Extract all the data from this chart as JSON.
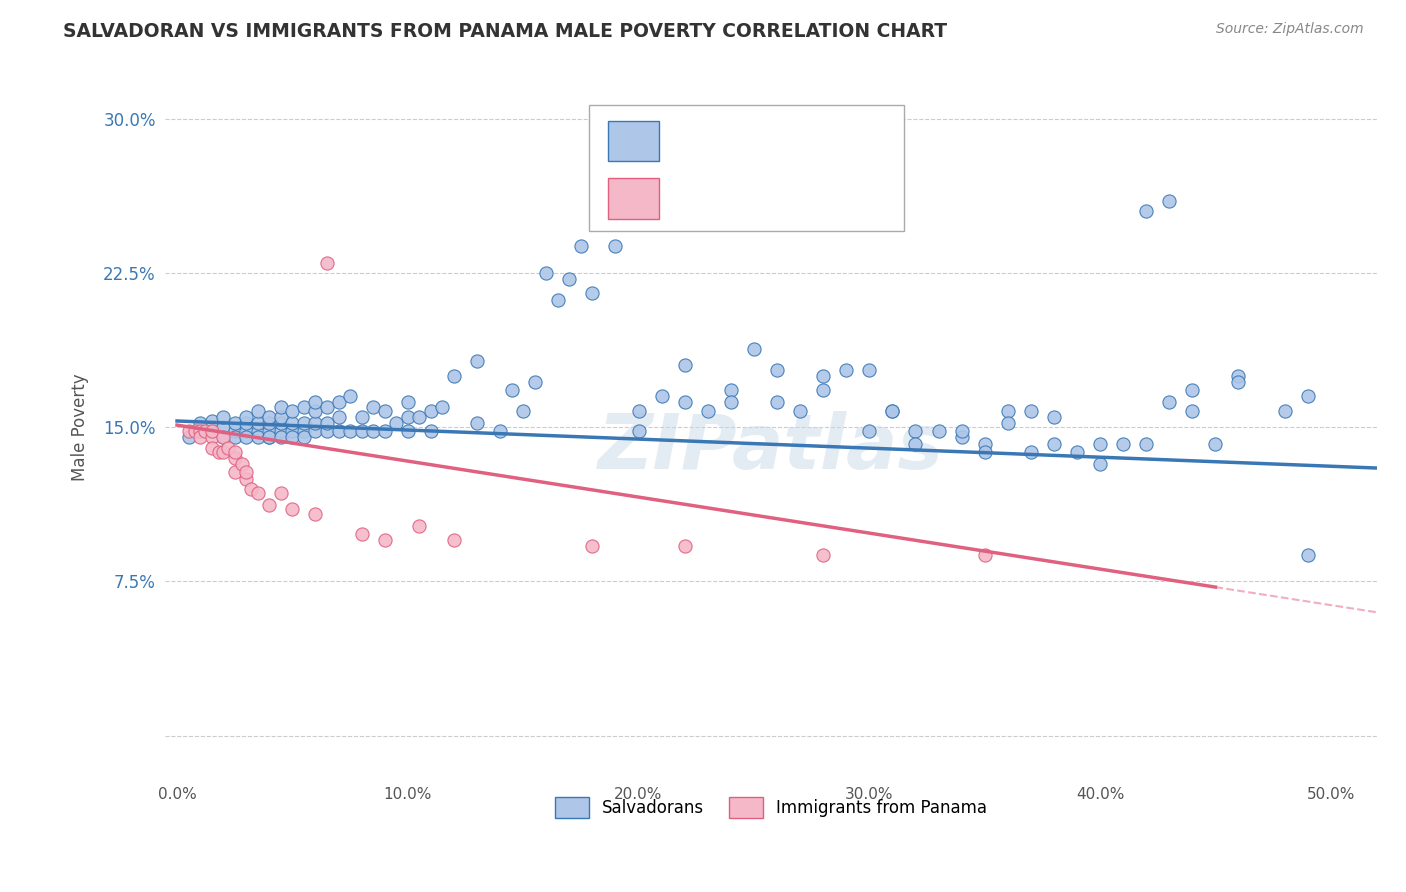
{
  "title": "SALVADORAN VS IMMIGRANTS FROM PANAMA MALE POVERTY CORRELATION CHART",
  "source": "Source: ZipAtlas.com",
  "ylabel": "Male Poverty",
  "x_ticks": [
    0.0,
    0.1,
    0.2,
    0.3,
    0.4,
    0.5
  ],
  "x_tick_labels": [
    "0.0%",
    "10.0%",
    "20.0%",
    "30.0%",
    "40.0%",
    "50.0%"
  ],
  "y_ticks": [
    0.0,
    0.075,
    0.15,
    0.225,
    0.3
  ],
  "y_tick_labels": [
    "",
    "7.5%",
    "15.0%",
    "22.5%",
    "30.0%"
  ],
  "xlim": [
    -0.005,
    0.52
  ],
  "ylim": [
    -0.02,
    0.32
  ],
  "color_blue": "#aec6e8",
  "color_pink": "#f4b8c8",
  "line_blue": "#3a78b5",
  "line_pink": "#e06080",
  "watermark": "ZIPatlas",
  "legend_label1": "Salvadorans",
  "legend_label2": "Immigrants from Panama",
  "blue_x": [
    0.005,
    0.01,
    0.01,
    0.015,
    0.015,
    0.02,
    0.02,
    0.02,
    0.025,
    0.025,
    0.025,
    0.03,
    0.03,
    0.03,
    0.03,
    0.035,
    0.035,
    0.035,
    0.035,
    0.04,
    0.04,
    0.04,
    0.04,
    0.04,
    0.045,
    0.045,
    0.045,
    0.045,
    0.045,
    0.05,
    0.05,
    0.05,
    0.05,
    0.055,
    0.055,
    0.055,
    0.055,
    0.06,
    0.06,
    0.06,
    0.06,
    0.065,
    0.065,
    0.065,
    0.07,
    0.07,
    0.07,
    0.075,
    0.075,
    0.08,
    0.08,
    0.085,
    0.085,
    0.09,
    0.09,
    0.095,
    0.1,
    0.1,
    0.1,
    0.105,
    0.11,
    0.11,
    0.115,
    0.12,
    0.13,
    0.13,
    0.14,
    0.145,
    0.15,
    0.155,
    0.16,
    0.165,
    0.17,
    0.175,
    0.18,
    0.19,
    0.2,
    0.21,
    0.22,
    0.23,
    0.24,
    0.25,
    0.26,
    0.27,
    0.28,
    0.3,
    0.31,
    0.32,
    0.33,
    0.34,
    0.35,
    0.36,
    0.37,
    0.38,
    0.39,
    0.4,
    0.41,
    0.42,
    0.43,
    0.44,
    0.45,
    0.46,
    0.48,
    0.49,
    0.28,
    0.3,
    0.32,
    0.35,
    0.37,
    0.4,
    0.42,
    0.44,
    0.26,
    0.29,
    0.31,
    0.34,
    0.36,
    0.38,
    0.43,
    0.46,
    0.49,
    0.2,
    0.22,
    0.24
  ],
  "blue_y": [
    0.145,
    0.148,
    0.152,
    0.148,
    0.153,
    0.145,
    0.15,
    0.155,
    0.148,
    0.152,
    0.145,
    0.148,
    0.152,
    0.145,
    0.155,
    0.148,
    0.152,
    0.145,
    0.158,
    0.145,
    0.148,
    0.152,
    0.145,
    0.155,
    0.148,
    0.152,
    0.145,
    0.155,
    0.16,
    0.148,
    0.152,
    0.145,
    0.158,
    0.148,
    0.152,
    0.145,
    0.16,
    0.148,
    0.152,
    0.158,
    0.162,
    0.148,
    0.152,
    0.16,
    0.148,
    0.155,
    0.162,
    0.148,
    0.165,
    0.148,
    0.155,
    0.148,
    0.16,
    0.148,
    0.158,
    0.152,
    0.148,
    0.155,
    0.162,
    0.155,
    0.148,
    0.158,
    0.16,
    0.175,
    0.152,
    0.182,
    0.148,
    0.168,
    0.158,
    0.172,
    0.225,
    0.212,
    0.222,
    0.238,
    0.215,
    0.238,
    0.158,
    0.165,
    0.18,
    0.158,
    0.168,
    0.188,
    0.162,
    0.158,
    0.168,
    0.148,
    0.158,
    0.148,
    0.148,
    0.145,
    0.142,
    0.158,
    0.158,
    0.155,
    0.138,
    0.132,
    0.142,
    0.255,
    0.26,
    0.168,
    0.142,
    0.175,
    0.158,
    0.088,
    0.175,
    0.178,
    0.142,
    0.138,
    0.138,
    0.142,
    0.142,
    0.158,
    0.178,
    0.178,
    0.158,
    0.148,
    0.152,
    0.142,
    0.162,
    0.172,
    0.165,
    0.148,
    0.162,
    0.162
  ],
  "pink_x": [
    0.005,
    0.008,
    0.01,
    0.01,
    0.012,
    0.015,
    0.015,
    0.015,
    0.018,
    0.02,
    0.02,
    0.022,
    0.025,
    0.025,
    0.025,
    0.028,
    0.03,
    0.03,
    0.032,
    0.035,
    0.04,
    0.045,
    0.05,
    0.06,
    0.065,
    0.08,
    0.09,
    0.105,
    0.12,
    0.18,
    0.22,
    0.28,
    0.35
  ],
  "pink_y": [
    0.148,
    0.148,
    0.148,
    0.145,
    0.148,
    0.145,
    0.148,
    0.14,
    0.138,
    0.145,
    0.138,
    0.14,
    0.135,
    0.138,
    0.128,
    0.132,
    0.125,
    0.128,
    0.12,
    0.118,
    0.112,
    0.118,
    0.11,
    0.108,
    0.23,
    0.098,
    0.095,
    0.102,
    0.095,
    0.092,
    0.092,
    0.088,
    0.088
  ]
}
